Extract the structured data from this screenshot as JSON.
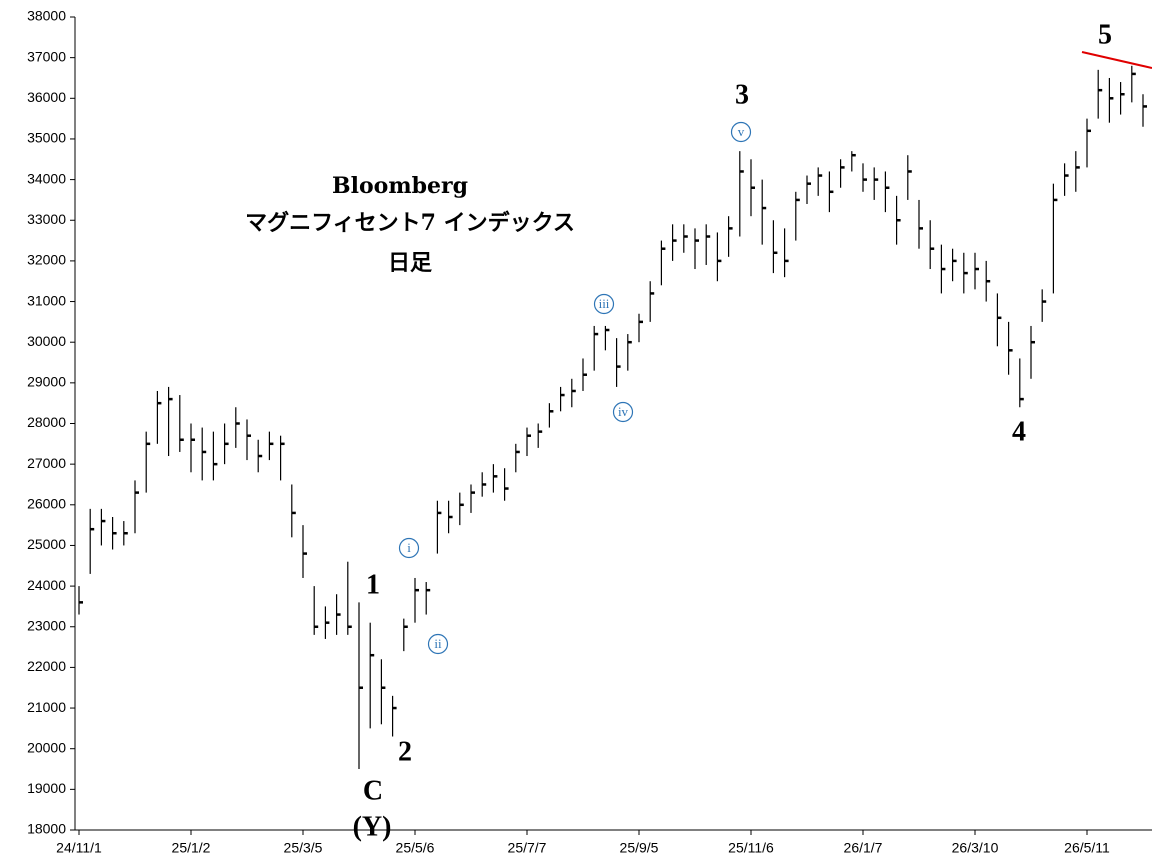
{
  "chart_data": {
    "type": "ohlc",
    "title_lines": [
      "Bloomberg",
      "マグニフィセント7 インデックス",
      "日足"
    ],
    "categories": [
      "24/11/1",
      null,
      null,
      null,
      null,
      null,
      null,
      null,
      null,
      null,
      "25/1/2",
      null,
      null,
      null,
      null,
      null,
      null,
      null,
      null,
      null,
      "25/3/5",
      null,
      null,
      null,
      null,
      null,
      null,
      null,
      null,
      null,
      "25/5/6",
      null,
      null,
      null,
      null,
      null,
      null,
      null,
      null,
      null,
      "25/7/7",
      null,
      null,
      null,
      null,
      null,
      null,
      null,
      null,
      null,
      "25/9/5",
      null,
      null,
      null,
      null,
      null,
      null,
      null,
      null,
      null,
      "25/11/6",
      null,
      null,
      null,
      null,
      null,
      null,
      null,
      null,
      null,
      "26/1/7",
      null,
      null,
      null,
      null,
      null,
      null,
      null,
      null,
      null,
      "26/3/10",
      null,
      null,
      null,
      null,
      null,
      null,
      null,
      null,
      null,
      "26/5/11",
      null,
      null,
      null,
      null,
      null
    ],
    "high": [
      24000,
      25900,
      25900,
      25700,
      25600,
      26600,
      27800,
      28800,
      28900,
      28700,
      28000,
      27900,
      27800,
      28000,
      28400,
      28100,
      27600,
      27800,
      27700,
      26500,
      25500,
      24000,
      23500,
      23800,
      24600,
      23600,
      23100,
      22200,
      21300,
      23200,
      24200,
      24100,
      26100,
      26100,
      26300,
      26500,
      26800,
      27000,
      26900,
      27500,
      27900,
      28000,
      28500,
      28900,
      29100,
      29600,
      30400,
      30400,
      30100,
      30200,
      30700,
      31500,
      32500,
      32900,
      32900,
      32800,
      32900,
      32700,
      33100,
      34700,
      34500,
      34000,
      33000,
      32800,
      33700,
      34100,
      34300,
      34200,
      34500,
      34700,
      34400,
      34300,
      34200,
      33600,
      34600,
      33500,
      33000,
      32400,
      32300,
      32200,
      32200,
      32000,
      31200,
      30500,
      29600,
      30400,
      31300,
      33900,
      34400,
      34700,
      35500,
      36700,
      36500,
      36400,
      36800,
      36100
    ],
    "low": [
      23300,
      24300,
      25000,
      24900,
      25000,
      25300,
      26300,
      27500,
      27200,
      27300,
      26800,
      26600,
      26600,
      27000,
      27400,
      27100,
      26800,
      27100,
      26600,
      25200,
      24200,
      22800,
      22700,
      22800,
      22800,
      19500,
      20500,
      20600,
      20300,
      22400,
      23100,
      23300,
      24800,
      25300,
      25500,
      25800,
      26200,
      26300,
      26100,
      26800,
      27200,
      27400,
      27900,
      28300,
      28400,
      28800,
      29300,
      29800,
      28900,
      29300,
      30000,
      30500,
      31400,
      32000,
      32200,
      31800,
      31900,
      31500,
      32100,
      32600,
      33100,
      32400,
      31700,
      31600,
      32500,
      33400,
      33600,
      33200,
      33800,
      34200,
      33700,
      33500,
      33200,
      32400,
      33500,
      32300,
      31800,
      31200,
      31500,
      31200,
      31300,
      31000,
      29900,
      29200,
      28400,
      29100,
      30500,
      31200,
      33600,
      33700,
      34300,
      35500,
      35400,
      35600,
      35900,
      35300
    ],
    "close": [
      23600,
      25400,
      25600,
      25300,
      25300,
      26300,
      27500,
      28500,
      28600,
      27600,
      27600,
      27300,
      27000,
      27500,
      28000,
      27700,
      27200,
      27500,
      27500,
      25800,
      24800,
      23000,
      23100,
      23300,
      23000,
      21500,
      22300,
      21500,
      21000,
      23000,
      23900,
      23900,
      25800,
      25700,
      26000,
      26300,
      26500,
      26700,
      26400,
      27300,
      27700,
      27800,
      28300,
      28700,
      28800,
      29200,
      30200,
      30300,
      29400,
      30000,
      30500,
      31200,
      32300,
      32500,
      32600,
      32500,
      32600,
      32000,
      32800,
      34200,
      33800,
      33300,
      32200,
      32000,
      33500,
      33900,
      34100,
      33700,
      34300,
      34600,
      34000,
      34000,
      33800,
      33000,
      34200,
      32800,
      32300,
      31800,
      32000,
      31700,
      31800,
      31500,
      30600,
      29800,
      28600,
      30000,
      31000,
      33500,
      34100,
      34300,
      35200,
      36200,
      36000,
      36100,
      36600,
      35800
    ],
    "color": "#000000",
    "ylim": [
      18000,
      38000
    ],
    "yticks": [
      18000,
      19000,
      20000,
      21000,
      22000,
      23000,
      24000,
      25000,
      26000,
      27000,
      28000,
      29000,
      30000,
      31000,
      32000,
      33000,
      34000,
      35000,
      36000,
      37000,
      38000
    ],
    "annotations": [
      "1",
      "2",
      "C",
      "(Y)",
      "3",
      "4",
      "5"
    ],
    "sub_annotations": [
      "i",
      "ii",
      "iii",
      "iv",
      "v"
    ]
  }
}
